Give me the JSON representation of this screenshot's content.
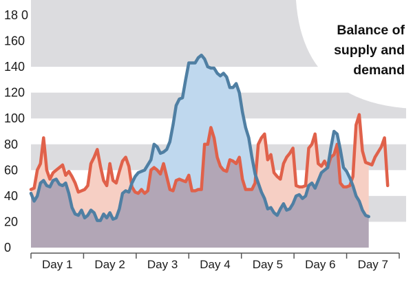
{
  "chart_data": {
    "type": "area",
    "title_lines": [
      "Balance of",
      "supply and",
      "demand"
    ],
    "ylim": [
      0,
      180
    ],
    "yticks": [
      0,
      20,
      40,
      60,
      80,
      100,
      120,
      140,
      160,
      180
    ],
    "ytick_labels": [
      "0",
      "20",
      "40",
      "60",
      "80",
      "100",
      "120",
      "140",
      "160",
      "18 0"
    ],
    "xlim": [
      0,
      7
    ],
    "categories": [
      "Day 1",
      "Day 2",
      "Day 3",
      "Day 4",
      "Day 5",
      "Day 6",
      "Day 7"
    ],
    "grid": true,
    "colors": {
      "red_series": "#e0614a",
      "blue_series": "#4f7fa3",
      "overlap_fill": "#b2a6b6",
      "red_fill": "#f6cfc4",
      "blue_fill": "#bfd8ee",
      "grid_band": "#dcdcdf",
      "corner": "#ffffff"
    },
    "series": [
      {
        "values": [
          [
            0.0,
            45
          ],
          [
            0.06,
            46
          ],
          [
            0.12,
            60
          ],
          [
            0.18,
            65
          ],
          [
            0.24,
            85
          ],
          [
            0.3,
            60
          ],
          [
            0.36,
            53
          ],
          [
            0.42,
            58
          ],
          [
            0.48,
            60
          ],
          [
            0.54,
            62
          ],
          [
            0.6,
            64
          ],
          [
            0.66,
            56
          ],
          [
            0.72,
            59
          ],
          [
            0.78,
            55
          ],
          [
            0.84,
            50
          ],
          [
            0.9,
            43
          ],
          [
            0.96,
            44
          ],
          [
            1.02,
            45
          ],
          [
            1.08,
            48
          ],
          [
            1.14,
            65
          ],
          [
            1.2,
            70
          ],
          [
            1.26,
            76
          ],
          [
            1.32,
            63
          ],
          [
            1.38,
            52
          ],
          [
            1.44,
            48
          ],
          [
            1.5,
            65
          ],
          [
            1.56,
            52
          ],
          [
            1.62,
            50
          ],
          [
            1.68,
            59
          ],
          [
            1.74,
            67
          ],
          [
            1.8,
            70
          ],
          [
            1.86,
            63
          ],
          [
            1.92,
            47
          ],
          [
            1.98,
            43
          ],
          [
            2.04,
            42
          ],
          [
            2.1,
            45
          ],
          [
            2.16,
            42
          ],
          [
            2.22,
            44
          ],
          [
            2.28,
            60
          ],
          [
            2.34,
            62
          ],
          [
            2.4,
            60
          ],
          [
            2.46,
            57
          ],
          [
            2.52,
            65
          ],
          [
            2.58,
            55
          ],
          [
            2.64,
            45
          ],
          [
            2.7,
            44
          ],
          [
            2.76,
            52
          ],
          [
            2.82,
            53
          ],
          [
            2.88,
            52
          ],
          [
            2.94,
            51
          ],
          [
            3.0,
            56
          ],
          [
            3.06,
            44
          ],
          [
            3.12,
            44
          ],
          [
            3.18,
            45
          ],
          [
            3.24,
            45
          ],
          [
            3.3,
            80
          ],
          [
            3.36,
            80
          ],
          [
            3.42,
            93
          ],
          [
            3.48,
            85
          ],
          [
            3.54,
            70
          ],
          [
            3.6,
            63
          ],
          [
            3.66,
            60
          ],
          [
            3.72,
            59
          ],
          [
            3.78,
            68
          ],
          [
            3.84,
            67
          ],
          [
            3.9,
            65
          ],
          [
            3.96,
            70
          ],
          [
            4.02,
            53
          ],
          [
            4.08,
            45
          ],
          [
            4.14,
            45
          ],
          [
            4.2,
            45
          ],
          [
            4.26,
            50
          ],
          [
            4.32,
            80
          ],
          [
            4.38,
            85
          ],
          [
            4.44,
            88
          ],
          [
            4.5,
            68
          ],
          [
            4.56,
            72
          ],
          [
            4.62,
            58
          ],
          [
            4.68,
            55
          ],
          [
            4.74,
            53
          ],
          [
            4.8,
            65
          ],
          [
            4.86,
            70
          ],
          [
            4.92,
            73
          ],
          [
            4.98,
            77
          ],
          [
            5.04,
            48
          ],
          [
            5.1,
            47
          ],
          [
            5.16,
            47
          ],
          [
            5.22,
            48
          ],
          [
            5.28,
            77
          ],
          [
            5.34,
            80
          ],
          [
            5.4,
            88
          ],
          [
            5.46,
            65
          ],
          [
            5.52,
            63
          ],
          [
            5.58,
            67
          ],
          [
            5.64,
            62
          ],
          [
            5.7,
            70
          ],
          [
            5.76,
            72
          ],
          [
            5.82,
            80
          ],
          [
            5.88,
            50
          ],
          [
            5.94,
            47
          ],
          [
            6.0,
            47
          ],
          [
            6.06,
            48
          ],
          [
            6.12,
            55
          ],
          [
            6.18,
            95
          ],
          [
            6.24,
            103
          ],
          [
            6.3,
            75
          ],
          [
            6.36,
            66
          ],
          [
            6.42,
            65
          ],
          [
            6.48,
            64
          ],
          [
            6.54,
            70
          ],
          [
            6.6,
            74
          ],
          [
            6.66,
            78
          ],
          [
            6.72,
            85
          ],
          [
            6.78,
            48
          ]
        ]
      },
      {
        "values": [
          [
            0.0,
            42
          ],
          [
            0.06,
            36
          ],
          [
            0.12,
            40
          ],
          [
            0.18,
            50
          ],
          [
            0.24,
            52
          ],
          [
            0.3,
            48
          ],
          [
            0.36,
            47
          ],
          [
            0.42,
            52
          ],
          [
            0.48,
            53
          ],
          [
            0.54,
            49
          ],
          [
            0.6,
            48
          ],
          [
            0.66,
            50
          ],
          [
            0.72,
            42
          ],
          [
            0.78,
            31
          ],
          [
            0.84,
            26
          ],
          [
            0.9,
            25
          ],
          [
            0.96,
            29
          ],
          [
            1.02,
            23
          ],
          [
            1.08,
            25
          ],
          [
            1.14,
            29
          ],
          [
            1.2,
            27
          ],
          [
            1.26,
            21
          ],
          [
            1.32,
            21
          ],
          [
            1.38,
            26
          ],
          [
            1.44,
            23
          ],
          [
            1.5,
            27
          ],
          [
            1.56,
            22
          ],
          [
            1.62,
            23
          ],
          [
            1.68,
            30
          ],
          [
            1.74,
            42
          ],
          [
            1.8,
            44
          ],
          [
            1.86,
            43
          ],
          [
            1.92,
            50
          ],
          [
            1.98,
            55
          ],
          [
            2.04,
            58
          ],
          [
            2.1,
            59
          ],
          [
            2.16,
            60
          ],
          [
            2.22,
            64
          ],
          [
            2.28,
            68
          ],
          [
            2.34,
            80
          ],
          [
            2.4,
            78
          ],
          [
            2.46,
            73
          ],
          [
            2.52,
            74
          ],
          [
            2.58,
            76
          ],
          [
            2.64,
            82
          ],
          [
            2.7,
            95
          ],
          [
            2.76,
            110
          ],
          [
            2.82,
            115
          ],
          [
            2.88,
            116
          ],
          [
            2.94,
            130
          ],
          [
            3.0,
            143
          ],
          [
            3.06,
            143
          ],
          [
            3.12,
            143
          ],
          [
            3.18,
            147
          ],
          [
            3.24,
            149
          ],
          [
            3.3,
            146
          ],
          [
            3.36,
            140
          ],
          [
            3.42,
            139
          ],
          [
            3.48,
            139
          ],
          [
            3.54,
            135
          ],
          [
            3.6,
            133
          ],
          [
            3.66,
            135
          ],
          [
            3.72,
            132
          ],
          [
            3.78,
            124
          ],
          [
            3.84,
            124
          ],
          [
            3.9,
            127
          ],
          [
            3.96,
            120
          ],
          [
            4.02,
            105
          ],
          [
            4.08,
            93
          ],
          [
            4.14,
            85
          ],
          [
            4.2,
            70
          ],
          [
            4.26,
            57
          ],
          [
            4.32,
            50
          ],
          [
            4.38,
            43
          ],
          [
            4.44,
            38
          ],
          [
            4.5,
            30
          ],
          [
            4.56,
            31
          ],
          [
            4.62,
            27
          ],
          [
            4.68,
            25
          ],
          [
            4.74,
            30
          ],
          [
            4.8,
            34
          ],
          [
            4.86,
            29
          ],
          [
            4.92,
            30
          ],
          [
            4.98,
            34
          ],
          [
            5.04,
            40
          ],
          [
            5.1,
            41
          ],
          [
            5.16,
            38
          ],
          [
            5.22,
            40
          ],
          [
            5.28,
            48
          ],
          [
            5.34,
            50
          ],
          [
            5.4,
            46
          ],
          [
            5.46,
            52
          ],
          [
            5.52,
            58
          ],
          [
            5.58,
            60
          ],
          [
            5.64,
            62
          ],
          [
            5.7,
            77
          ],
          [
            5.76,
            90
          ],
          [
            5.82,
            88
          ],
          [
            5.88,
            76
          ],
          [
            5.94,
            62
          ],
          [
            6.0,
            59
          ],
          [
            6.06,
            54
          ],
          [
            6.12,
            48
          ],
          [
            6.18,
            40
          ],
          [
            6.24,
            36
          ],
          [
            6.3,
            29
          ],
          [
            6.36,
            25
          ],
          [
            6.42,
            24
          ]
        ]
      }
    ]
  }
}
